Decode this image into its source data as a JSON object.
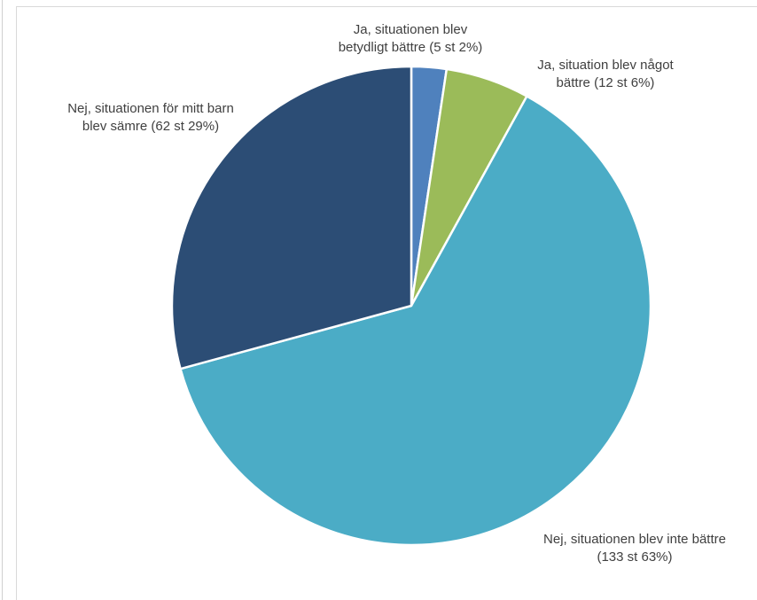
{
  "chart_data": {
    "type": "pie",
    "title": "",
    "series": [
      {
        "values": [
          5,
          12,
          133,
          62
        ],
        "percents": [
          2,
          6,
          63,
          29
        ]
      }
    ],
    "categories": [
      "Ja, situationen blev betydligt bättre",
      "Ja, situation blev något bättre",
      "Nej, situationen blev inte bättre",
      "Nej, situationen för mitt barn blev sämre"
    ],
    "labels": [
      {
        "line1": "Ja, situationen blev",
        "line2": "betydligt bättre (5 st 2%)"
      },
      {
        "line1": "Ja, situation blev något",
        "line2": "bättre (12 st 6%)"
      },
      {
        "line1": "Nej, situationen blev inte bättre",
        "line2": "(133 st 63%)"
      },
      {
        "line1": "Nej, situationen för mitt barn",
        "line2": "blev sämre (62 st 29%)"
      }
    ],
    "colors": [
      "#4f81bd",
      "#9bbb59",
      "#4bacc6",
      "#2c4d75"
    ],
    "legend": "none",
    "start_angle_deg": 0,
    "direction": "clockwise"
  }
}
